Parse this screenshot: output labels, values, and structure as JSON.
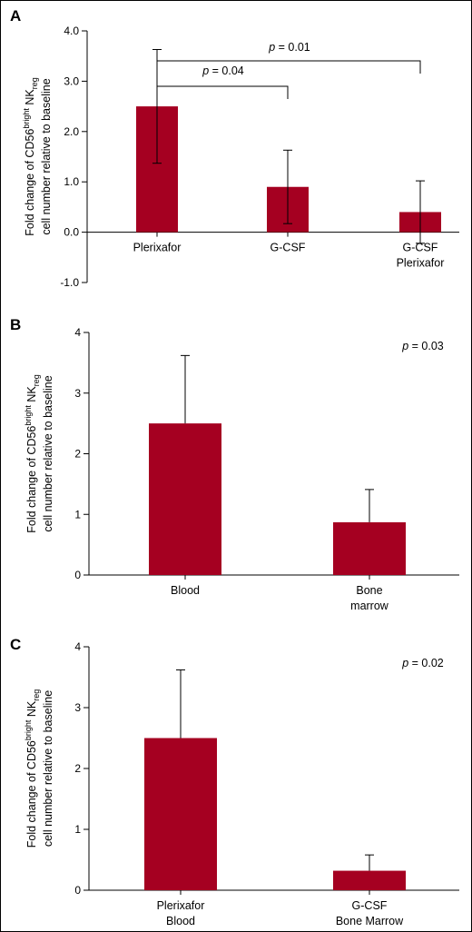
{
  "chart_data": [
    {
      "panel_label": "A",
      "type": "bar",
      "categories": [
        [
          "Plerixafor"
        ],
        [
          "G-CSF"
        ],
        [
          "G-CSF",
          "Plerixafor"
        ]
      ],
      "values": [
        2.5,
        0.9,
        0.4
      ],
      "error": [
        1.13,
        0.73,
        0.62
      ],
      "ylim": [
        -1.0,
        4.0
      ],
      "yticks": [
        -1.0,
        0.0,
        1.0,
        2.0,
        3.0,
        4.0
      ],
      "ytick_labels": [
        "-1.0",
        "0.0",
        "1.0",
        "2.0",
        "3.0",
        "4.0"
      ],
      "ylabel": {
        "pre": "Fold change of CD56",
        "sup": "bright",
        "mid": " NK",
        "sub": "reg",
        "line2": "cell number relative to baseline"
      },
      "annotations": [
        {
          "from": 0,
          "to": 1,
          "p": "= 0.04"
        },
        {
          "from": 0,
          "to": 2,
          "p": "= 0.01"
        }
      ],
      "bar_color": "#a50021"
    },
    {
      "panel_label": "B",
      "type": "bar",
      "categories": [
        [
          "Blood"
        ],
        [
          "Bone",
          "marrow"
        ]
      ],
      "values": [
        2.5,
        0.87
      ],
      "error": [
        1.12,
        0.54
      ],
      "ylim": [
        0,
        4
      ],
      "yticks": [
        0,
        1,
        2,
        3,
        4
      ],
      "ytick_labels": [
        "0",
        "1",
        "2",
        "3",
        "4"
      ],
      "ylabel": {
        "pre": "Fold change of CD56",
        "sup": "bright",
        "mid": " NK",
        "sub": "reg",
        "line2": "cell number relative to baseline"
      },
      "p_text": "= 0.03",
      "bar_color": "#a50021"
    },
    {
      "panel_label": "C",
      "type": "bar",
      "categories": [
        [
          "Plerixafor",
          "Blood"
        ],
        [
          "G-CSF",
          "Bone Marrow"
        ]
      ],
      "values": [
        2.5,
        0.32
      ],
      "error": [
        1.12,
        0.26
      ],
      "ylim": [
        0,
        4
      ],
      "yticks": [
        0,
        1,
        2,
        3,
        4
      ],
      "ytick_labels": [
        "0",
        "1",
        "2",
        "3",
        "4"
      ],
      "ylabel": {
        "pre": "Fold change of CD56",
        "sup": "bright",
        "mid": " NK",
        "sub": "reg",
        "line2": "cell number relative to baseline"
      },
      "p_text": "= 0.02",
      "bar_color": "#a50021"
    }
  ]
}
